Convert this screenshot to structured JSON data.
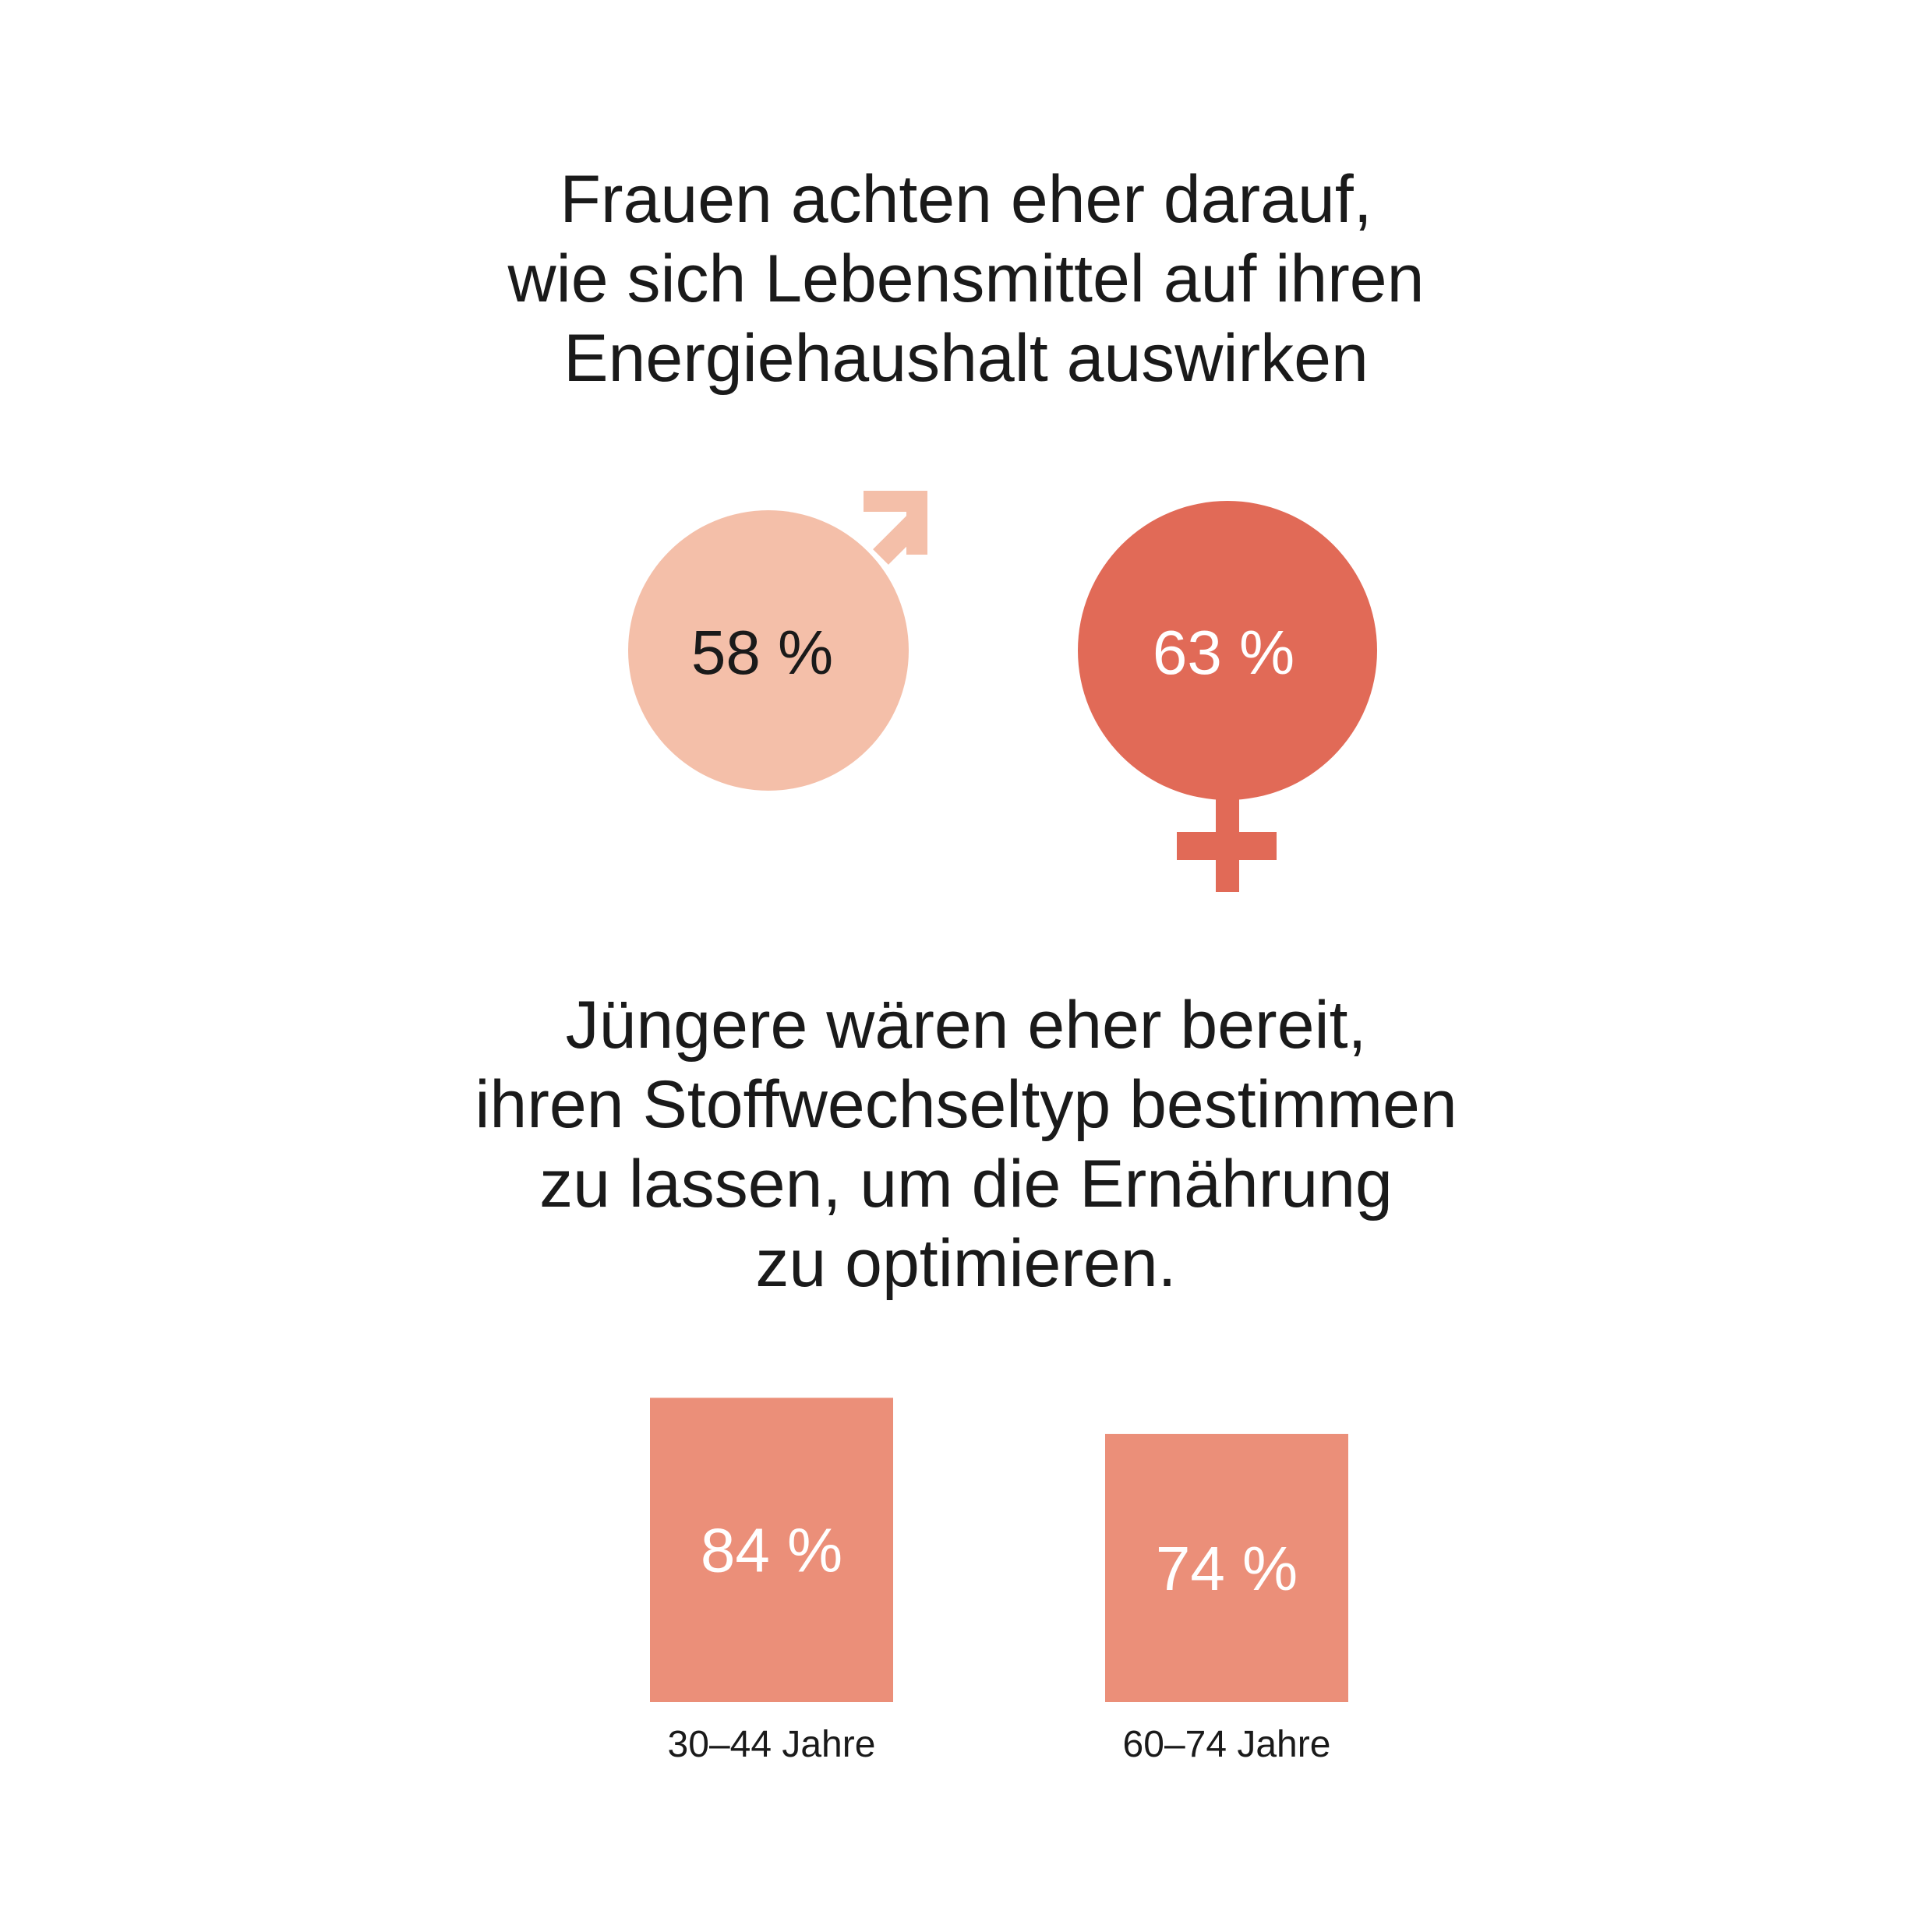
{
  "headline_1": [
    "Frauen achten eher darauf,",
    "wie sich Lebensmittel auf ihren",
    "Energiehaushalt auswirken"
  ],
  "headline_2": [
    "Jüngere wären eher bereit,",
    "ihren Stoffwechseltyp bestimmen",
    "zu lassen, um die Ernährung",
    "zu optimieren."
  ],
  "colors": {
    "male": "#F4BFA9",
    "female": "#E16A57",
    "bar": "#EB8F79",
    "text_dark": "#1a1a1a",
    "text_light": "#ffffff"
  },
  "chart_data": [
    {
      "type": "pie",
      "categories": [
        "male-symbol",
        "female-symbol"
      ],
      "values": [
        58,
        63
      ],
      "labels": [
        "58 %",
        "63 %"
      ]
    },
    {
      "type": "bar",
      "categories": [
        "30–44 Jahre",
        "60–74 Jahre"
      ],
      "values": [
        84,
        74
      ],
      "labels": [
        "84 %",
        "74 %"
      ]
    }
  ]
}
